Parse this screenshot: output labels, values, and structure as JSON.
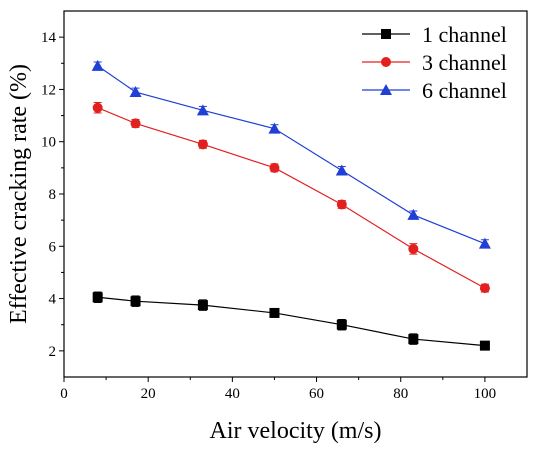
{
  "chart_data": {
    "type": "line",
    "xlabel": "Air velocity (m/s)",
    "ylabel": "Effective cracking rate (%)",
    "xlim": [
      0,
      110
    ],
    "ylim": [
      1,
      15
    ],
    "xticks": [
      0,
      20,
      40,
      60,
      80,
      100
    ],
    "yticks": [
      2,
      4,
      6,
      8,
      10,
      12,
      14
    ],
    "grid": false,
    "legend_position": "top-right",
    "x": [
      8,
      17,
      33,
      50,
      66,
      83,
      100
    ],
    "series": [
      {
        "name": "1 channel",
        "color": "#000000",
        "marker": "square",
        "values": [
          4.05,
          3.9,
          3.75,
          3.45,
          3.0,
          2.45,
          2.2
        ],
        "errors": [
          0.2,
          0.2,
          0.2,
          0.15,
          0.2,
          0.2,
          0.15
        ]
      },
      {
        "name": "3 channel",
        "color": "#e32020",
        "marker": "circle",
        "values": [
          11.3,
          10.7,
          9.9,
          9.0,
          7.6,
          5.9,
          4.4
        ],
        "errors": [
          0.2,
          0.15,
          0.15,
          0.15,
          0.15,
          0.2,
          0.15
        ]
      },
      {
        "name": "6 channel",
        "color": "#1f3fd6",
        "marker": "triangle",
        "values": [
          12.9,
          11.9,
          11.2,
          10.5,
          8.9,
          7.2,
          6.1
        ],
        "errors": [
          0.15,
          0.15,
          0.15,
          0.15,
          0.15,
          0.15,
          0.15
        ]
      }
    ]
  }
}
